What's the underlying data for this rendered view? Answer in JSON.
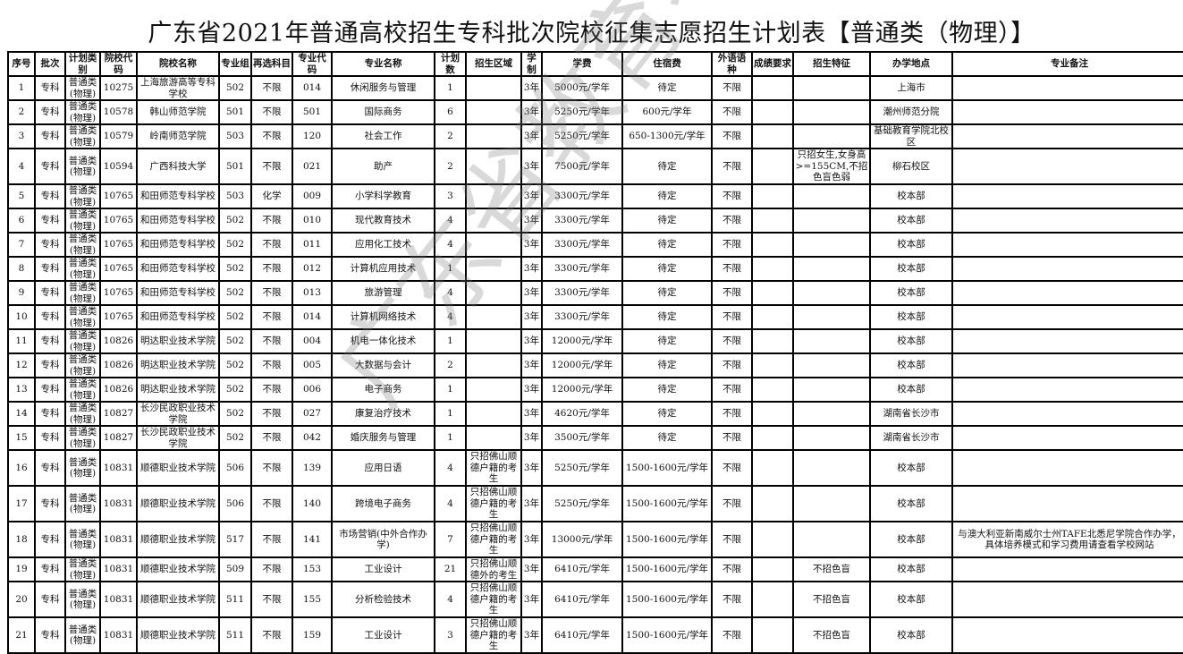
{
  "title": "广东省2021年普通高校招生专科批次院校征集志愿招生计划表【普通类（物理）】",
  "watermark": "广东省教育考试院",
  "columns": [
    "序号",
    "批次",
    "计划类别",
    "院校代码",
    "院校名称",
    "专业组",
    "再选科目",
    "专业代码",
    "专业名称",
    "计划数",
    "招生区域",
    "学制",
    "学费",
    "住宿费",
    "外语语种",
    "成绩要求",
    "招生特征",
    "办学地点",
    "专业备注"
  ],
  "rows": [
    [
      "1",
      "专科",
      "普通类(物理)",
      "10275",
      "上海旅游高等专科学校",
      "502",
      "不限",
      "014",
      "休闲服务与管理",
      "1",
      "",
      "3年",
      "5000元/学年",
      "待定",
      "不限",
      "",
      "",
      "上海市",
      ""
    ],
    [
      "2",
      "专科",
      "普通类(物理)",
      "10578",
      "韩山师范学院",
      "501",
      "不限",
      "501",
      "国际商务",
      "6",
      "",
      "3年",
      "5250元/学年",
      "600元/学年",
      "不限",
      "",
      "",
      "潮州师范分院",
      ""
    ],
    [
      "3",
      "专科",
      "普通类(物理)",
      "10579",
      "岭南师范学院",
      "503",
      "不限",
      "120",
      "社会工作",
      "2",
      "",
      "3年",
      "5250元/学年",
      "650-1300元/学年",
      "不限",
      "",
      "",
      "基础教育学院北校区",
      ""
    ],
    [
      "4",
      "专科",
      "普通类(物理)",
      "10594",
      "广西科技大学",
      "501",
      "不限",
      "021",
      "助产",
      "2",
      "",
      "3年",
      "7500元/学年",
      "待定",
      "不限",
      "",
      "只招女生,女身高>=155CM,不招色盲色弱",
      "柳石校区",
      ""
    ],
    [
      "5",
      "专科",
      "普通类(物理)",
      "10765",
      "和田师范专科学校",
      "503",
      "化学",
      "009",
      "小学科学教育",
      "3",
      "",
      "3年",
      "3300元/学年",
      "待定",
      "不限",
      "",
      "",
      "校本部",
      ""
    ],
    [
      "6",
      "专科",
      "普通类(物理)",
      "10765",
      "和田师范专科学校",
      "502",
      "不限",
      "010",
      "现代教育技术",
      "4",
      "",
      "3年",
      "3300元/学年",
      "待定",
      "不限",
      "",
      "",
      "校本部",
      ""
    ],
    [
      "7",
      "专科",
      "普通类(物理)",
      "10765",
      "和田师范专科学校",
      "502",
      "不限",
      "011",
      "应用化工技术",
      "4",
      "",
      "3年",
      "3300元/学年",
      "待定",
      "不限",
      "",
      "",
      "校本部",
      ""
    ],
    [
      "8",
      "专科",
      "普通类(物理)",
      "10765",
      "和田师范专科学校",
      "502",
      "不限",
      "012",
      "计算机应用技术",
      "1",
      "",
      "3年",
      "3300元/学年",
      "待定",
      "不限",
      "",
      "",
      "校本部",
      ""
    ],
    [
      "9",
      "专科",
      "普通类(物理)",
      "10765",
      "和田师范专科学校",
      "502",
      "不限",
      "013",
      "旅游管理",
      "4",
      "",
      "3年",
      "3300元/学年",
      "待定",
      "不限",
      "",
      "",
      "校本部",
      ""
    ],
    [
      "10",
      "专科",
      "普通类(物理)",
      "10765",
      "和田师范专科学校",
      "502",
      "不限",
      "014",
      "计算机网络技术",
      "4",
      "",
      "3年",
      "3300元/学年",
      "待定",
      "不限",
      "",
      "",
      "校本部",
      ""
    ],
    [
      "11",
      "专科",
      "普通类(物理)",
      "10826",
      "明达职业技术学院",
      "502",
      "不限",
      "004",
      "机电一体化技术",
      "1",
      "",
      "3年",
      "12000元/学年",
      "待定",
      "不限",
      "",
      "",
      "校本部",
      ""
    ],
    [
      "12",
      "专科",
      "普通类(物理)",
      "10826",
      "明达职业技术学院",
      "502",
      "不限",
      "005",
      "大数据与会计",
      "2",
      "",
      "3年",
      "12000元/学年",
      "待定",
      "不限",
      "",
      "",
      "校本部",
      ""
    ],
    [
      "13",
      "专科",
      "普通类(物理)",
      "10826",
      "明达职业技术学院",
      "502",
      "不限",
      "006",
      "电子商务",
      "1",
      "",
      "3年",
      "12000元/学年",
      "待定",
      "不限",
      "",
      "",
      "校本部",
      ""
    ],
    [
      "14",
      "专科",
      "普通类(物理)",
      "10827",
      "长沙民政职业技术学院",
      "502",
      "不限",
      "027",
      "康复治疗技术",
      "1",
      "",
      "3年",
      "4620元/学年",
      "待定",
      "不限",
      "",
      "",
      "湖南省长沙市",
      ""
    ],
    [
      "15",
      "专科",
      "普通类(物理)",
      "10827",
      "长沙民政职业技术学院",
      "502",
      "不限",
      "042",
      "婚庆服务与管理",
      "1",
      "",
      "3年",
      "3500元/学年",
      "待定",
      "不限",
      "",
      "",
      "湖南省长沙市",
      ""
    ],
    [
      "16",
      "专科",
      "普通类(物理)",
      "10831",
      "顺德职业技术学院",
      "506",
      "不限",
      "139",
      "应用日语",
      "4",
      "只招佛山顺德户籍的考生",
      "3年",
      "5250元/学年",
      "1500-1600元/学年",
      "不限",
      "",
      "",
      "校本部",
      ""
    ],
    [
      "17",
      "专科",
      "普通类(物理)",
      "10831",
      "顺德职业技术学院",
      "506",
      "不限",
      "140",
      "跨境电子商务",
      "4",
      "只招佛山顺德户籍的考生",
      "3年",
      "5250元/学年",
      "1500-1600元/学年",
      "不限",
      "",
      "",
      "校本部",
      ""
    ],
    [
      "18",
      "专科",
      "普通类(物理)",
      "10831",
      "顺德职业技术学院",
      "517",
      "不限",
      "141",
      "市场营销(中外合作办学)",
      "7",
      "只招佛山顺德户籍的考生",
      "3年",
      "13000元/学年",
      "1500-1600元/学年",
      "不限",
      "",
      "",
      "校本部",
      "与澳大利亚新南威尔士州TAFE北悉尼学院合作办学，具体培养模式和学习费用请查看学校网站"
    ],
    [
      "19",
      "专科",
      "普通类(物理)",
      "10831",
      "顺德职业技术学院",
      "509",
      "不限",
      "153",
      "工业设计",
      "21",
      "只招佛山顺德外的考生",
      "3年",
      "6410元/学年",
      "1500-1600元/学年",
      "不限",
      "",
      "不招色盲",
      "校本部",
      ""
    ],
    [
      "20",
      "专科",
      "普通类(物理)",
      "10831",
      "顺德职业技术学院",
      "511",
      "不限",
      "155",
      "分析检验技术",
      "4",
      "只招佛山顺德户籍的考生",
      "3年",
      "6410元/学年",
      "1500-1600元/学年",
      "不限",
      "",
      "不招色盲",
      "校本部",
      ""
    ],
    [
      "21",
      "专科",
      "普通类(物理)",
      "10831",
      "顺德职业技术学院",
      "511",
      "不限",
      "159",
      "工业设计",
      "3",
      "只招佛山顺德户籍的考生",
      "3年",
      "6410元/学年",
      "1500-1600元/学年",
      "不限",
      "",
      "不招色盲",
      "校本部",
      ""
    ]
  ]
}
